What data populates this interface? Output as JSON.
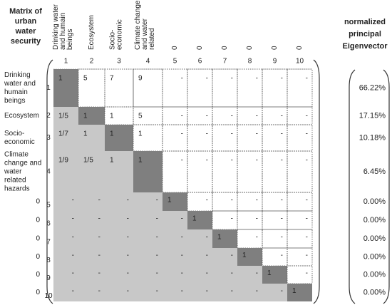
{
  "title": [
    "Matrix of",
    "urban",
    "water",
    "security"
  ],
  "column_headers": [
    [
      "Drinking water",
      "and humain",
      "beings"
    ],
    [
      "Ecosystem"
    ],
    [
      "Socio-",
      "economic"
    ],
    [
      "Climate change",
      "and water",
      "related"
    ],
    [
      "0"
    ],
    [
      "0"
    ],
    [
      "0"
    ],
    [
      "0"
    ],
    [
      "0"
    ],
    [
      "0"
    ]
  ],
  "column_numbers": [
    "1",
    "2",
    "3",
    "4",
    "5",
    "6",
    "7",
    "8",
    "9",
    "10"
  ],
  "row_labels": [
    [
      "Drinking",
      "water and",
      "humain",
      "beings"
    ],
    [
      "Ecosystem"
    ],
    [
      "Socio-",
      "economic"
    ],
    [
      "Climate",
      "change and",
      "water",
      "related",
      "hazards"
    ],
    [
      "0"
    ],
    [
      "0"
    ],
    [
      "0"
    ],
    [
      "0"
    ],
    [
      "0"
    ],
    [
      "0"
    ]
  ],
  "row_numbers": [
    "1",
    "2",
    "3",
    "4",
    "5",
    "6",
    "7",
    "8",
    "9",
    "10"
  ],
  "matrix": [
    [
      "1",
      "5",
      "7",
      "9",
      "-",
      "-",
      "-",
      "-",
      "-",
      "-"
    ],
    [
      "1/5",
      "1",
      "1",
      "5",
      "-",
      "-",
      "-",
      "-",
      "-",
      "-"
    ],
    [
      "1/7",
      "1",
      "1",
      "1",
      "-",
      "-",
      "-",
      "-",
      "-",
      "-"
    ],
    [
      "1/9",
      "1/5",
      "1",
      "1",
      "-",
      "-",
      "-",
      "-",
      "-",
      "-"
    ],
    [
      "-",
      "-",
      "-",
      "-",
      "1",
      "-",
      "-",
      "-",
      "-",
      "-"
    ],
    [
      "-",
      "-",
      "-",
      "-",
      "-",
      "1",
      "-",
      "-",
      "-",
      "-"
    ],
    [
      "-",
      "-",
      "-",
      "-",
      "-",
      "-",
      "1",
      "-",
      "-",
      "-"
    ],
    [
      "-",
      "-",
      "-",
      "-",
      "-",
      "-",
      "-",
      "1",
      "-",
      "-"
    ],
    [
      "-",
      "-",
      "-",
      "-",
      "-",
      "-",
      "-",
      "-",
      "1",
      "-"
    ],
    [
      "-",
      "-",
      "-",
      "-",
      "-",
      "-",
      "-",
      "-",
      "-",
      "1"
    ]
  ],
  "eigenvector_header": [
    "normalized",
    "principal",
    "Eigenvector"
  ],
  "eigenvector": [
    "66.22%",
    "17.15%",
    "10.18%",
    "6.45%",
    "0.00%",
    "0.00%",
    "0.00%",
    "0.00%",
    "0.00%",
    "0.00%"
  ]
}
